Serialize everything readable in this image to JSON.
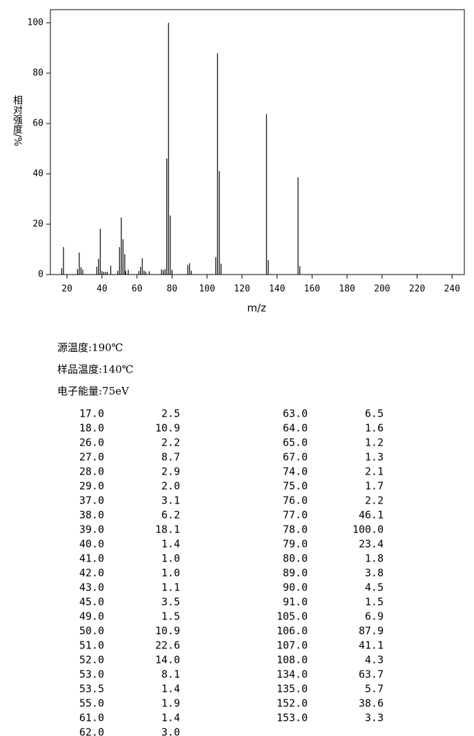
{
  "chart_data": {
    "type": "stick",
    "ylabel": "相对强度/%",
    "xlabel": "m/z",
    "color": "#000000",
    "x": [
      17,
      18,
      26,
      27,
      28,
      29,
      37,
      38,
      39,
      40,
      41,
      42,
      43,
      45,
      49,
      50,
      51,
      52,
      53,
      53.5,
      55,
      61,
      62,
      63,
      64,
      65,
      67,
      74,
      75,
      76,
      77,
      78,
      79,
      80,
      89,
      90,
      91,
      105,
      106,
      107,
      108,
      134,
      135,
      152,
      153
    ],
    "values": [
      2.5,
      10.9,
      2.2,
      8.7,
      2.9,
      2.0,
      3.1,
      6.2,
      18.1,
      1.4,
      1.0,
      1.0,
      1.1,
      3.5,
      1.5,
      10.9,
      22.6,
      14.0,
      8.1,
      1.4,
      1.9,
      1.4,
      3.0,
      6.5,
      1.6,
      1.2,
      1.3,
      2.1,
      1.7,
      2.2,
      46.1,
      100.0,
      23.4,
      1.8,
      3.8,
      4.5,
      1.5,
      6.9,
      87.9,
      41.1,
      4.3,
      63.7,
      5.7,
      38.6,
      3.3
    ],
    "xlim": [
      10.5,
      247
    ],
    "ylim": [
      0,
      105.2
    ],
    "xticks": [
      20,
      40,
      60,
      80,
      100,
      120,
      140,
      160,
      180,
      200,
      220,
      240
    ],
    "yticks": [
      0,
      20,
      40,
      60,
      80,
      100
    ]
  },
  "conditions": [
    "源温度:190℃",
    "样品温度:140℃",
    "电子能量:75eV"
  ],
  "table": {
    "rows": [
      [
        "17.0",
        "2.5"
      ],
      [
        "18.0",
        "10.9"
      ],
      [
        "26.0",
        "2.2"
      ],
      [
        "27.0",
        "8.7"
      ],
      [
        "28.0",
        "2.9"
      ],
      [
        "29.0",
        "2.0"
      ],
      [
        "37.0",
        "3.1"
      ],
      [
        "38.0",
        "6.2"
      ],
      [
        "39.0",
        "18.1"
      ],
      [
        "40.0",
        "1.4"
      ],
      [
        "41.0",
        "1.0"
      ],
      [
        "42.0",
        "1.0"
      ],
      [
        "43.0",
        "1.1"
      ],
      [
        "45.0",
        "3.5"
      ],
      [
        "49.0",
        "1.5"
      ],
      [
        "50.0",
        "10.9"
      ],
      [
        "51.0",
        "22.6"
      ],
      [
        "52.0",
        "14.0"
      ],
      [
        "53.0",
        "8.1"
      ],
      [
        "53.5",
        "1.4"
      ],
      [
        "55.0",
        "1.9"
      ],
      [
        "61.0",
        "1.4"
      ],
      [
        "62.0",
        "3.0"
      ],
      [
        "63.0",
        "6.5"
      ],
      [
        "64.0",
        "1.6"
      ],
      [
        "65.0",
        "1.2"
      ],
      [
        "67.0",
        "1.3"
      ],
      [
        "74.0",
        "2.1"
      ],
      [
        "75.0",
        "1.7"
      ],
      [
        "76.0",
        "2.2"
      ],
      [
        "77.0",
        "46.1"
      ],
      [
        "78.0",
        "100.0"
      ],
      [
        "79.0",
        "23.4"
      ],
      [
        "80.0",
        "1.8"
      ],
      [
        "89.0",
        "3.8"
      ],
      [
        "90.0",
        "4.5"
      ],
      [
        "91.0",
        "1.5"
      ],
      [
        "105.0",
        "6.9"
      ],
      [
        "106.0",
        "87.9"
      ],
      [
        "107.0",
        "41.1"
      ],
      [
        "108.0",
        "4.3"
      ],
      [
        "134.0",
        "63.7"
      ],
      [
        "135.0",
        "5.7"
      ],
      [
        "152.0",
        "38.6"
      ],
      [
        "153.0",
        "3.3"
      ]
    ]
  }
}
